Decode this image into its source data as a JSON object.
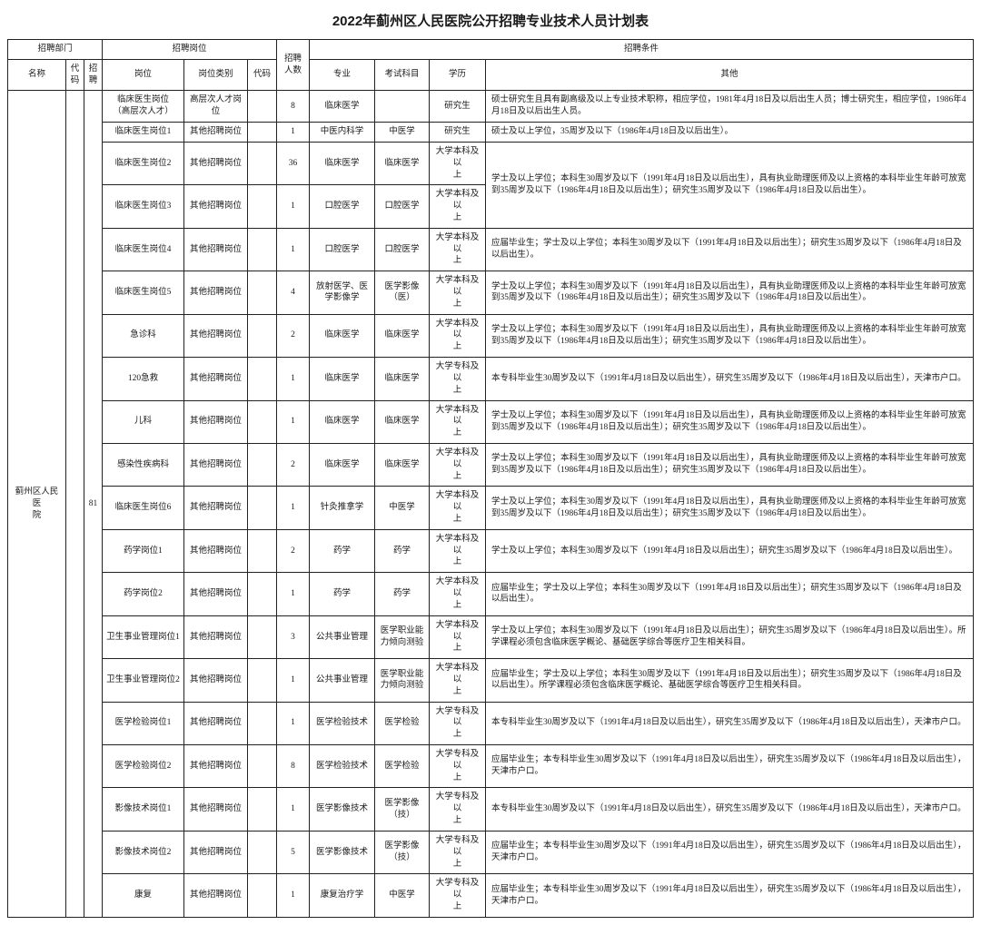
{
  "title": "2022年蓟州区人民医院公开招聘专业技术人员计划表",
  "header": {
    "dept": "招聘部门",
    "post_group": "招聘岗位",
    "num": "招聘人数",
    "cond": "招聘条件",
    "name": "名称",
    "code1": "代码",
    "rec": "招聘",
    "post": "岗位",
    "ptype": "岗位类别",
    "code2": "代码",
    "major": "专业",
    "subj": "考试科目",
    "edu": "学历",
    "other": "其他"
  },
  "dept_name": "蓟州区人民医\n院",
  "total_rec": "81",
  "rows": [
    {
      "post": "临床医生岗位\n（高层次人才）",
      "ptype": "高层次人才岗\n位",
      "num": "8",
      "major": "临床医学",
      "subj": "",
      "edu": "研究生",
      "other": "硕士研究生且具有副高级及以上专业技术职称，相应学位，1981年4月18日及以后出生人员；博士研究生，相应学位，1986年4月18日及以后出生人员。"
    },
    {
      "post": "临床医生岗位1",
      "ptype": "其他招聘岗位",
      "num": "1",
      "major": "中医内科学",
      "subj": "中医学",
      "edu": "研究生",
      "other": "硕士及以上学位，35周岁及以下（1986年4月18日及以后出生）。"
    },
    {
      "post": "临床医生岗位2",
      "ptype": "其他招聘岗位",
      "num": "36",
      "major": "临床医学",
      "subj": "临床医学",
      "edu": "大学本科及以\n上",
      "other": "学士及以上学位；本科生30周岁及以下（1991年4月18日及以后出生），具有执业助理医师及以上资格的本科毕业生年龄可放宽到35周岁及以下（1986年4月18日及以后出生）；研究生35周岁及以下（1986年4月18日及以后出生）。"
    },
    {
      "post": "临床医生岗位3",
      "ptype": "其他招聘岗位",
      "num": "1",
      "major": "口腔医学",
      "subj": "口腔医学",
      "edu": "大学本科及以\n上",
      "other": ""
    },
    {
      "post": "临床医生岗位4",
      "ptype": "其他招聘岗位",
      "num": "1",
      "major": "口腔医学",
      "subj": "口腔医学",
      "edu": "大学本科及以\n上",
      "other": "应届毕业生；学士及以上学位；本科生30周岁及以下（1991年4月18日及以后出生）；研究生35周岁及以下（1986年4月18日及以后出生）。"
    },
    {
      "post": "临床医生岗位5",
      "ptype": "其他招聘岗位",
      "num": "4",
      "major": "放射医学、医\n学影像学",
      "subj": "医学影像\n（医）",
      "edu": "大学本科及以\n上",
      "other": "学士及以上学位；本科生30周岁及以下（1991年4月18日及以后出生），具有执业助理医师及以上资格的本科毕业生年龄可放宽到35周岁及以下（1986年4月18日及以后出生）；研究生35周岁及以下（1986年4月18日及以后出生）。"
    },
    {
      "post": "急诊科",
      "ptype": "其他招聘岗位",
      "num": "2",
      "major": "临床医学",
      "subj": "临床医学",
      "edu": "大学本科及以\n上",
      "other": "学士及以上学位；本科生30周岁及以下（1991年4月18日及以后出生），具有执业助理医师及以上资格的本科毕业生年龄可放宽到35周岁及以下（1986年4月18日及以后出生）；研究生35周岁及以下（1986年4月18日及以后出生）。"
    },
    {
      "post": "120急救",
      "ptype": "其他招聘岗位",
      "num": "1",
      "major": "临床医学",
      "subj": "临床医学",
      "edu": "大学专科及以\n上",
      "other": "本专科毕业生30周岁及以下（1991年4月18日及以后出生），研究生35周岁及以下（1986年4月18日及以后出生），天津市户口。"
    },
    {
      "post": "儿科",
      "ptype": "其他招聘岗位",
      "num": "1",
      "major": "临床医学",
      "subj": "临床医学",
      "edu": "大学本科及以\n上",
      "other": "学士及以上学位；本科生30周岁及以下（1991年4月18日及以后出生），具有执业助理医师及以上资格的本科毕业生年龄可放宽到35周岁及以下（1986年4月18日及以后出生）；研究生35周岁及以下（1986年4月18日及以后出生）。"
    },
    {
      "post": "感染性疾病科",
      "ptype": "其他招聘岗位",
      "num": "2",
      "major": "临床医学",
      "subj": "临床医学",
      "edu": "大学本科及以\n上",
      "other": "学士及以上学位；本科生30周岁及以下（1991年4月18日及以后出生），具有执业助理医师及以上资格的本科毕业生年龄可放宽到35周岁及以下（1986年4月18日及以后出生）；研究生35周岁及以下（1986年4月18日及以后出生）。"
    },
    {
      "post": "临床医生岗位6",
      "ptype": "其他招聘岗位",
      "num": "1",
      "major": "针灸推拿学",
      "subj": "中医学",
      "edu": "大学本科及以\n上",
      "other": "学士及以上学位；本科生30周岁及以下（1991年4月18日及以后出生），具有执业助理医师及以上资格的本科毕业生年龄可放宽到35周岁及以下（1986年4月18日及以后出生）；研究生35周岁及以下（1986年4月18日及以后出生）。"
    },
    {
      "post": "药学岗位1",
      "ptype": "其他招聘岗位",
      "num": "2",
      "major": "药学",
      "subj": "药学",
      "edu": "大学本科及以\n上",
      "other": "学士及以上学位；本科生30周岁及以下（1991年4月18日及以后出生）；研究生35周岁及以下（1986年4月18日及以后出生）。"
    },
    {
      "post": "药学岗位2",
      "ptype": "其他招聘岗位",
      "num": "1",
      "major": "药学",
      "subj": "药学",
      "edu": "大学本科及以\n上",
      "other": "应届毕业生；学士及以上学位；本科生30周岁及以下（1991年4月18日及以后出生）；研究生35周岁及以下（1986年4月18日及以后出生）。"
    },
    {
      "post": "卫生事业管理岗位1",
      "ptype": "其他招聘岗位",
      "num": "3",
      "major": "公共事业管理",
      "subj": "医学职业能\n力倾向测验",
      "edu": "大学本科及以\n上",
      "other": "学士及以上学位；本科生30周岁及以下（1991年4月18日及以后出生）；研究生35周岁及以下（1986年4月18日及以后出生）。所学课程必须包含临床医学概论、基础医学综合等医疗卫生相关科目。"
    },
    {
      "post": "卫生事业管理岗位2",
      "ptype": "其他招聘岗位",
      "num": "1",
      "major": "公共事业管理",
      "subj": "医学职业能\n力倾向测验",
      "edu": "大学本科及以\n上",
      "other": "应届毕业生；学士及以上学位；本科生30周岁及以下（1991年4月18日及以后出生）；研究生35周岁及以下（1986年4月18日及以后出生）。所学课程必须包含临床医学概论、基础医学综合等医疗卫生相关科目。"
    },
    {
      "post": "医学检验岗位1",
      "ptype": "其他招聘岗位",
      "num": "1",
      "major": "医学检验技术",
      "subj": "医学检验",
      "edu": "大学专科及以\n上",
      "other": "本专科毕业生30周岁及以下（1991年4月18日及以后出生），研究生35周岁及以下（1986年4月18日及以后出生），天津市户口。"
    },
    {
      "post": "医学检验岗位2",
      "ptype": "其他招聘岗位",
      "num": "8",
      "major": "医学检验技术",
      "subj": "医学检验",
      "edu": "大学专科及以\n上",
      "other": "应届毕业生；本专科毕业生30周岁及以下（1991年4月18日及以后出生），研究生35周岁及以下（1986年4月18日及以后出生），天津市户口。"
    },
    {
      "post": "影像技术岗位1",
      "ptype": "其他招聘岗位",
      "num": "1",
      "major": "医学影像技术",
      "subj": "医学影像\n（技）",
      "edu": "大学专科及以\n上",
      "other": "本专科毕业生30周岁及以下（1991年4月18日及以后出生），研究生35周岁及以下（1986年4月18日及以后出生），天津市户口。"
    },
    {
      "post": "影像技术岗位2",
      "ptype": "其他招聘岗位",
      "num": "5",
      "major": "医学影像技术",
      "subj": "医学影像\n（技）",
      "edu": "大学专科及以\n上",
      "other": "应届毕业生；本专科毕业生30周岁及以下（1991年4月18日及以后出生），研究生35周岁及以下（1986年4月18日及以后出生），天津市户口。"
    },
    {
      "post": "康复",
      "ptype": "其他招聘岗位",
      "num": "1",
      "major": "康复治疗学",
      "subj": "中医学",
      "edu": "大学专科及以\n上",
      "other": "应届毕业生；本专科毕业生30周岁及以下（1991年4月18日及以后出生），研究生35周岁及以下（1986年4月18日及以后出生），天津市户口。"
    }
  ],
  "merge_other_row3_span": 2
}
